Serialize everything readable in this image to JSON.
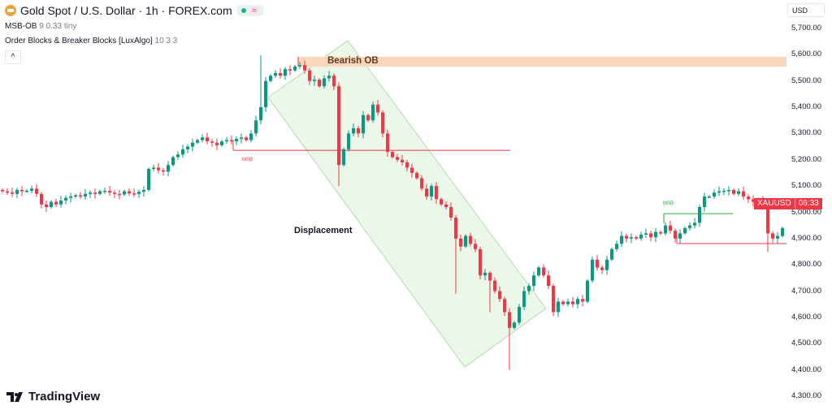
{
  "header": {
    "symbol_title": "Gold Spot / U.S. Dollar · 1h · FOREX.com",
    "symbol_icon": "gold-coin-icon",
    "status_pill": {
      "market_icon": "market-open-dot-icon",
      "delay_icon": "approx-wave-icon",
      "delay_glyph": "≈"
    }
  },
  "indicators": [
    {
      "name": "MSB-OB",
      "params": "9 0.33 tiny"
    },
    {
      "name": "Order Blocks & Breaker Blocks [LuxAlgo]",
      "params": "10 3 3"
    }
  ],
  "collapse_button": {
    "glyph": "^"
  },
  "currency": "USD",
  "price_axis": {
    "labels": [
      "5,700.00",
      "5,600.00",
      "5,500.00",
      "5,400.00",
      "5,300.00",
      "5,200.00",
      "5,100.00",
      "5,000.00",
      "4,900.00",
      "4,800.00",
      "4,700.00",
      "4,600.00",
      "4,500.00",
      "4,400.00",
      "4,300.00"
    ],
    "max": 5700,
    "min": 4300
  },
  "price_tag": {
    "symbol": "XAUUSD",
    "countdown": "06:33",
    "color": "#f23645"
  },
  "annotations": {
    "bearish_ob": {
      "label": "Bearish OB",
      "top": 5592,
      "bottom": 5555,
      "color": "#fcd6bb"
    },
    "displacement": {
      "label": "Displacement",
      "color": "#e6f5e2"
    },
    "msb_bearish": {
      "label": "MSB",
      "price": 5236,
      "color": "#f23645"
    },
    "msb_bullish": {
      "label": "MSB",
      "price": 4995,
      "color": "#22ab3a"
    },
    "support_line": {
      "price": 4881,
      "color": "#f23645"
    }
  },
  "colors": {
    "up": "#089981",
    "down": "#f23645"
  },
  "chart_data": {
    "type": "candlestick",
    "closes": [
      5080,
      5075,
      5070,
      5085,
      5080,
      5082,
      5090,
      5070,
      5030,
      5020,
      5040,
      5030,
      5045,
      5055,
      5060,
      5065,
      5060,
      5070,
      5075,
      5070,
      5080,
      5082,
      5075,
      5070,
      5068,
      5080,
      5072,
      5070,
      5078,
      5085,
      5165,
      5170,
      5160,
      5155,
      5180,
      5210,
      5220,
      5240,
      5250,
      5265,
      5275,
      5285,
      5270,
      5265,
      5255,
      5270,
      5275,
      5270,
      5280,
      5285,
      5275,
      5300,
      5350,
      5400,
      5500,
      5520,
      5530,
      5520,
      5545,
      5540,
      5555,
      5560,
      5540,
      5500,
      5505,
      5480,
      5510,
      5520,
      5480,
      5180,
      5240,
      5300,
      5320,
      5300,
      5370,
      5350,
      5410,
      5380,
      5300,
      5230,
      5210,
      5200,
      5190,
      5170,
      5150,
      5130,
      5090,
      5060,
      5100,
      5050,
      5030,
      5020,
      4980,
      4900,
      4870,
      4910,
      4880,
      4860,
      4760,
      4770,
      4740,
      4700,
      4670,
      4620,
      4560,
      4580,
      4640,
      4700,
      4720,
      4760,
      4790,
      4760,
      4720,
      4620,
      4660,
      4650,
      4660,
      4650,
      4670,
      4660,
      4740,
      4820,
      4790,
      4780,
      4820,
      4860,
      4880,
      4910,
      4900,
      4905,
      4900,
      4915,
      4920,
      4905,
      4925,
      4920,
      4950,
      4930,
      4900,
      4920,
      4940,
      4950,
      4960,
      5020,
      5060,
      5060,
      5075,
      5080,
      5082,
      5085,
      5070,
      5080,
      5060,
      5050,
      5040,
      5050,
      5020,
      4920,
      4900,
      4910,
      4940
    ],
    "wick_extremes": [
      {
        "index": 53,
        "high": 5598
      },
      {
        "index": 69,
        "low": 5100
      },
      {
        "index": 93,
        "low": 4690
      },
      {
        "index": 100,
        "low": 4620
      },
      {
        "index": 104,
        "low": 4400
      },
      {
        "index": 157,
        "low": 4850
      }
    ]
  },
  "branding": {
    "logo_text": "TradingView"
  }
}
